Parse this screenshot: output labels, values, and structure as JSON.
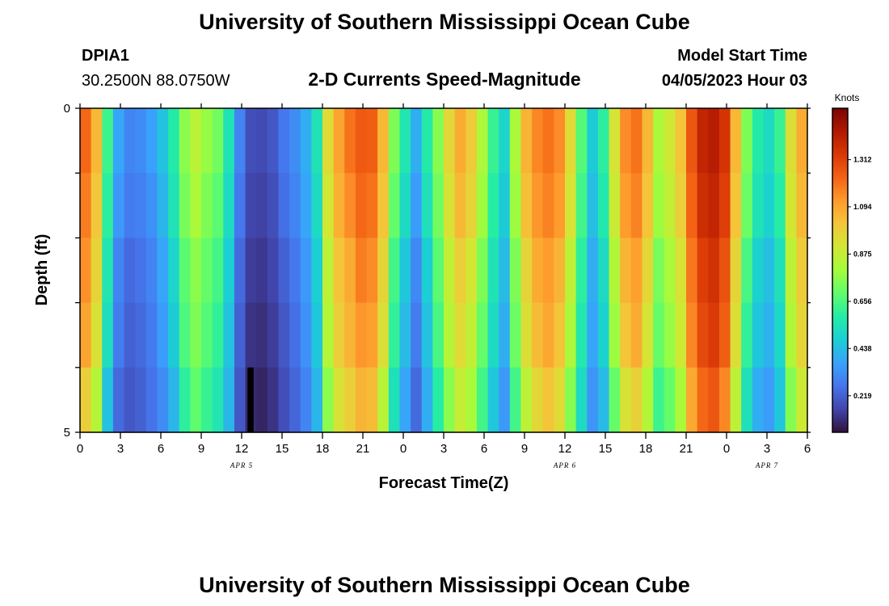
{
  "header": {
    "title": "University of Southern Mississippi Ocean Cube",
    "station_id": "DPIA1",
    "coords": "30.2500N  88.0750W",
    "subtitle": "2-D Currents Speed-Magnitude",
    "start_label": "Model Start Time",
    "start_value": "04/05/2023 Hour 03"
  },
  "footer": {
    "title": "University of Southern Mississippi Ocean Cube"
  },
  "chart_data": {
    "type": "heatmap",
    "title": "2-D Currents Speed-Magnitude",
    "xlabel": "Forecast Time(Z)",
    "ylabel": "Depth (ft)",
    "x_tick_labels": [
      "0",
      "3",
      "6",
      "9",
      "12",
      "15",
      "18",
      "21",
      "0",
      "3",
      "6",
      "9",
      "12",
      "15",
      "18",
      "21",
      "0",
      "3",
      "6"
    ],
    "x_date_labels": [
      {
        "text": "APR 5",
        "hour": 12
      },
      {
        "text": "APR 6",
        "hour": 36
      },
      {
        "text": "APR 7",
        "hour": 51
      }
    ],
    "y_tick_labels": [
      "0",
      "5"
    ],
    "y_range": [
      0,
      5
    ],
    "x_range_hours": [
      0,
      54
    ],
    "depth_bands": [
      0,
      1,
      2,
      3,
      4,
      5
    ],
    "colorbar": {
      "unit": "Knots",
      "ticks": [
        "0.219",
        "0.438",
        "0.656",
        "0.875",
        "1.094",
        "1.312"
      ],
      "range": [
        0.05,
        1.55
      ],
      "colors": [
        "#30123b",
        "#4145ab",
        "#4675ed",
        "#39a2fc",
        "#1bcfd4",
        "#24eca6",
        "#61fc6c",
        "#a4fc3b",
        "#d1e834",
        "#f3c63a",
        "#fe9b2d",
        "#f36315",
        "#d93806",
        "#b11901",
        "#7a0403"
      ]
    },
    "speed_matrix_knots": [
      [
        1.22,
        1.18,
        1.14,
        1.1,
        0.99,
        0.98
      ],
      [
        1.05,
        1.01,
        0.97,
        0.93,
        0.84,
        0.8
      ],
      [
        0.63,
        0.6,
        0.56,
        0.53,
        0.45,
        0.4
      ],
      [
        0.38,
        0.35,
        0.3,
        0.28,
        0.24,
        0.22
      ],
      [
        0.3,
        0.28,
        0.24,
        0.22,
        0.2,
        0.18
      ],
      [
        0.32,
        0.29,
        0.26,
        0.24,
        0.22,
        0.21
      ],
      [
        0.37,
        0.33,
        0.3,
        0.28,
        0.26,
        0.25
      ],
      [
        0.45,
        0.42,
        0.38,
        0.36,
        0.32,
        0.3
      ],
      [
        0.58,
        0.55,
        0.5,
        0.47,
        0.42,
        0.4
      ],
      [
        0.76,
        0.73,
        0.68,
        0.66,
        0.6,
        0.57
      ],
      [
        0.85,
        0.82,
        0.76,
        0.74,
        0.69,
        0.66
      ],
      [
        0.78,
        0.74,
        0.7,
        0.67,
        0.62,
        0.6
      ],
      [
        0.72,
        0.68,
        0.64,
        0.61,
        0.56,
        0.55
      ],
      [
        0.55,
        0.52,
        0.48,
        0.45,
        0.42,
        0.4
      ],
      [
        0.3,
        0.27,
        0.24,
        0.22,
        0.2,
        0.19
      ],
      [
        0.18,
        0.16,
        0.14,
        0.12,
        0.1,
        0.08
      ],
      [
        0.17,
        0.15,
        0.13,
        0.11,
        0.09,
        0.07
      ],
      [
        0.2,
        0.18,
        0.16,
        0.14,
        0.12,
        0.1
      ],
      [
        0.27,
        0.25,
        0.22,
        0.2,
        0.18,
        0.17
      ],
      [
        0.32,
        0.3,
        0.27,
        0.25,
        0.23,
        0.22
      ],
      [
        0.4,
        0.38,
        0.35,
        0.33,
        0.3,
        0.29
      ],
      [
        0.55,
        0.52,
        0.48,
        0.46,
        0.42,
        0.4
      ],
      [
        0.95,
        0.91,
        0.86,
        0.83,
        0.76,
        0.73
      ],
      [
        1.1,
        1.07,
        1.02,
        0.99,
        0.93,
        0.9
      ],
      [
        1.2,
        1.15,
        1.08,
        1.06,
        0.99,
        0.96
      ],
      [
        1.25,
        1.22,
        1.18,
        1.13,
        1.06,
        1.02
      ],
      [
        1.24,
        1.2,
        1.15,
        1.11,
        1.04,
        1.0
      ],
      [
        1.05,
        1.02,
        0.97,
        0.94,
        0.85,
        0.82
      ],
      [
        0.74,
        0.7,
        0.64,
        0.61,
        0.54,
        0.51
      ],
      [
        0.56,
        0.52,
        0.46,
        0.43,
        0.38,
        0.36
      ],
      [
        0.4,
        0.36,
        0.31,
        0.28,
        0.24,
        0.22
      ],
      [
        0.58,
        0.54,
        0.48,
        0.45,
        0.4,
        0.38
      ],
      [
        0.75,
        0.72,
        0.68,
        0.65,
        0.59,
        0.57
      ],
      [
        0.96,
        0.93,
        0.87,
        0.84,
        0.76,
        0.73
      ],
      [
        1.08,
        1.05,
        0.99,
        0.95,
        0.88,
        0.85
      ],
      [
        1.0,
        0.97,
        0.91,
        0.87,
        0.81,
        0.78
      ],
      [
        0.82,
        0.79,
        0.74,
        0.7,
        0.64,
        0.61
      ],
      [
        0.62,
        0.59,
        0.55,
        0.52,
        0.46,
        0.43
      ],
      [
        0.5,
        0.47,
        0.43,
        0.4,
        0.35,
        0.33
      ],
      [
        0.82,
        0.79,
        0.74,
        0.71,
        0.64,
        0.61
      ],
      [
        1.06,
        1.03,
        0.97,
        0.94,
        0.86,
        0.83
      ],
      [
        1.16,
        1.13,
        1.08,
        1.04,
        0.96,
        0.92
      ],
      [
        1.2,
        1.17,
        1.12,
        1.09,
        1.02,
        0.98
      ],
      [
        1.15,
        1.12,
        1.06,
        1.02,
        0.95,
        0.92
      ],
      [
        0.95,
        0.92,
        0.86,
        0.82,
        0.75,
        0.72
      ],
      [
        0.67,
        0.64,
        0.6,
        0.57,
        0.52,
        0.5
      ],
      [
        0.47,
        0.44,
        0.4,
        0.38,
        0.34,
        0.32
      ],
      [
        0.6,
        0.57,
        0.52,
        0.49,
        0.43,
        0.41
      ],
      [
        0.92,
        0.89,
        0.83,
        0.79,
        0.7,
        0.67
      ],
      [
        1.15,
        1.12,
        1.06,
        1.02,
        0.93,
        0.9
      ],
      [
        1.2,
        1.17,
        1.11,
        1.08,
        0.98,
        0.95
      ],
      [
        1.05,
        1.02,
        0.96,
        0.92,
        0.84,
        0.81
      ],
      [
        0.82,
        0.79,
        0.73,
        0.7,
        0.63,
        0.6
      ],
      [
        0.9,
        0.87,
        0.81,
        0.78,
        0.7,
        0.67
      ],
      [
        1.02,
        0.99,
        0.93,
        0.9,
        0.82,
        0.79
      ],
      [
        1.26,
        1.23,
        1.19,
        1.16,
        1.09,
        1.06
      ],
      [
        1.4,
        1.37,
        1.32,
        1.29,
        1.22,
        1.18
      ],
      [
        1.43,
        1.4,
        1.36,
        1.33,
        1.26,
        1.22
      ],
      [
        1.35,
        1.32,
        1.27,
        1.24,
        1.16,
        1.12
      ],
      [
        1.05,
        1.02,
        0.97,
        0.94,
        0.86,
        0.83
      ],
      [
        0.74,
        0.71,
        0.65,
        0.61,
        0.54,
        0.51
      ],
      [
        0.58,
        0.55,
        0.49,
        0.46,
        0.4,
        0.38
      ],
      [
        0.52,
        0.49,
        0.44,
        0.41,
        0.36,
        0.34
      ],
      [
        0.62,
        0.59,
        0.54,
        0.51,
        0.46,
        0.44
      ],
      [
        0.94,
        0.91,
        0.86,
        0.83,
        0.75,
        0.72
      ],
      [
        1.08,
        1.05,
        1.0,
        0.97,
        0.9,
        0.87
      ]
    ],
    "black_cell": {
      "column": 15,
      "band": 4
    }
  }
}
